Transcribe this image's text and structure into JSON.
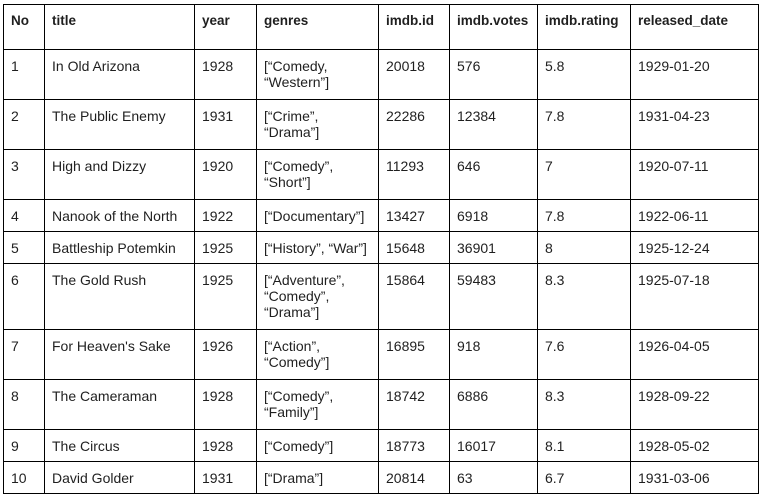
{
  "table": {
    "headers": [
      "No",
      "title",
      "year",
      "genres",
      "imdb.id",
      "imdb.votes",
      "imdb.rating",
      "released_date"
    ],
    "rows": [
      {
        "no": "1",
        "title": "In Old Arizona",
        "year": "1928",
        "genres_line1": "[“Comedy,",
        "genres_line2": "“Western”]",
        "genres_line3": "",
        "imdb_id": "20018",
        "imdb_votes": "576",
        "imdb_rating": "5.8",
        "released_date": "1929-01-20"
      },
      {
        "no": "2",
        "title": "The Public Enemy",
        "year": "1931",
        "genres_line1": "[“Crime”,",
        "genres_line2": "“Drama”]",
        "genres_line3": "",
        "imdb_id": "22286",
        "imdb_votes": "12384",
        "imdb_rating": "7.8",
        "released_date": "1931-04-23"
      },
      {
        "no": "3",
        "title": "High and Dizzy",
        "year": "1920",
        "genres_line1": "[“Comedy”,",
        "genres_line2": "“Short”]",
        "genres_line3": "",
        "imdb_id": "11293",
        "imdb_votes": "646",
        "imdb_rating": "7",
        "released_date": "1920-07-11"
      },
      {
        "no": "4",
        "title": "Nanook of the North",
        "year": "1922",
        "genres_line1": "[“Documentary”]",
        "genres_line2": "",
        "genres_line3": "",
        "imdb_id": "13427",
        "imdb_votes": "6918",
        "imdb_rating": "7.8",
        "released_date": "1922-06-11"
      },
      {
        "no": "5",
        "title": "Battleship Potemkin",
        "year": "1925",
        "genres_line1": "[“History”, “War”]",
        "genres_line2": "",
        "genres_line3": "",
        "imdb_id": "15648",
        "imdb_votes": "36901",
        "imdb_rating": "8",
        "released_date": "1925-12-24"
      },
      {
        "no": "6",
        "title": "The Gold Rush",
        "year": "1925",
        "genres_line1": "[“Adventure”,",
        "genres_line2": "“Comedy”,",
        "genres_line3": "“Drama”]",
        "imdb_id": "15864",
        "imdb_votes": "59483",
        "imdb_rating": "8.3",
        "released_date": "1925-07-18"
      },
      {
        "no": "7",
        "title": "For Heaven's Sake",
        "year": "1926",
        "genres_line1": "[“Action”,",
        "genres_line2": "“Comedy”]",
        "genres_line3": "",
        "imdb_id": "16895",
        "imdb_votes": "918",
        "imdb_rating": "7.6",
        "released_date": "1926-04-05"
      },
      {
        "no": "8",
        "title": "The Cameraman",
        "year": "1928",
        "genres_line1": "[“Comedy”,",
        "genres_line2": "“Family”]",
        "genres_line3": "",
        "imdb_id": "18742",
        "imdb_votes": "6886",
        "imdb_rating": "8.3",
        "released_date": "1928-09-22"
      },
      {
        "no": "9",
        "title": "The Circus",
        "year": "1928",
        "genres_line1": "[“Comedy”]",
        "genres_line2": "",
        "genres_line3": "",
        "imdb_id": "18773",
        "imdb_votes": "16017",
        "imdb_rating": "8.1",
        "released_date": "1928-05-02"
      },
      {
        "no": "10",
        "title": "David Golder",
        "year": "1931",
        "genres_line1": "[“Drama”]",
        "genres_line2": "",
        "genres_line3": "",
        "imdb_id": "20814",
        "imdb_votes": "63",
        "imdb_rating": "6.7",
        "released_date": "1931-03-06"
      }
    ]
  }
}
